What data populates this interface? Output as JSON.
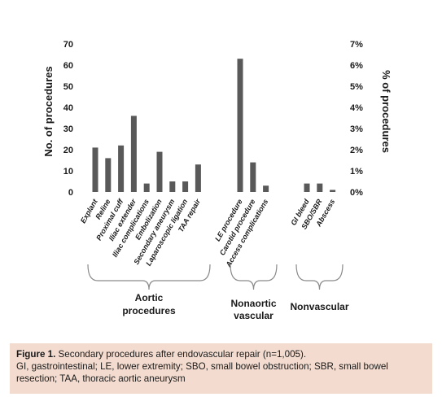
{
  "chart_data": {
    "type": "bar",
    "ylabel": "No. of procedures",
    "y2label": "% of procedures",
    "ylim": [
      0,
      70
    ],
    "y_ticks": [
      "0",
      "10",
      "20",
      "30",
      "40",
      "50",
      "60",
      "70"
    ],
    "y2_ticks": [
      "0%",
      "1%",
      "2%",
      "3%",
      "4%",
      "5%",
      "6%",
      "7%"
    ],
    "grid": false,
    "groups": [
      {
        "label_lines": [
          "Aortic",
          "procedures"
        ],
        "categories": [
          "Explant",
          "Reline",
          "Proximal cuff",
          "Iliac extender",
          "Iliac complications",
          "Embolization",
          "Secondary aneurysm",
          "Laparoscopic ligation",
          "TAA repair"
        ],
        "values": [
          21,
          16,
          22,
          36,
          4,
          19,
          5,
          5,
          13
        ]
      },
      {
        "label_lines": [
          "Nonaortic",
          "vascular"
        ],
        "categories": [
          "LE procedure",
          "Carotid procedure",
          "Access complications"
        ],
        "values": [
          63,
          14,
          3
        ]
      },
      {
        "label_lines": [
          "Nonvascular"
        ],
        "categories": [
          "GI bleed",
          "SBO/SBR",
          "Abscess"
        ],
        "values": [
          4,
          4,
          1
        ]
      }
    ]
  },
  "caption": {
    "figure_label": "Figure 1.",
    "title": " Secondary procedures after endovascular repair (n=1,005).",
    "notes": "GI, gastrointestinal; LE, lower extremity; SBO, small bowel obstruction; SBR, small bowel resection; TAA, thoracic aortic aneurysm"
  }
}
